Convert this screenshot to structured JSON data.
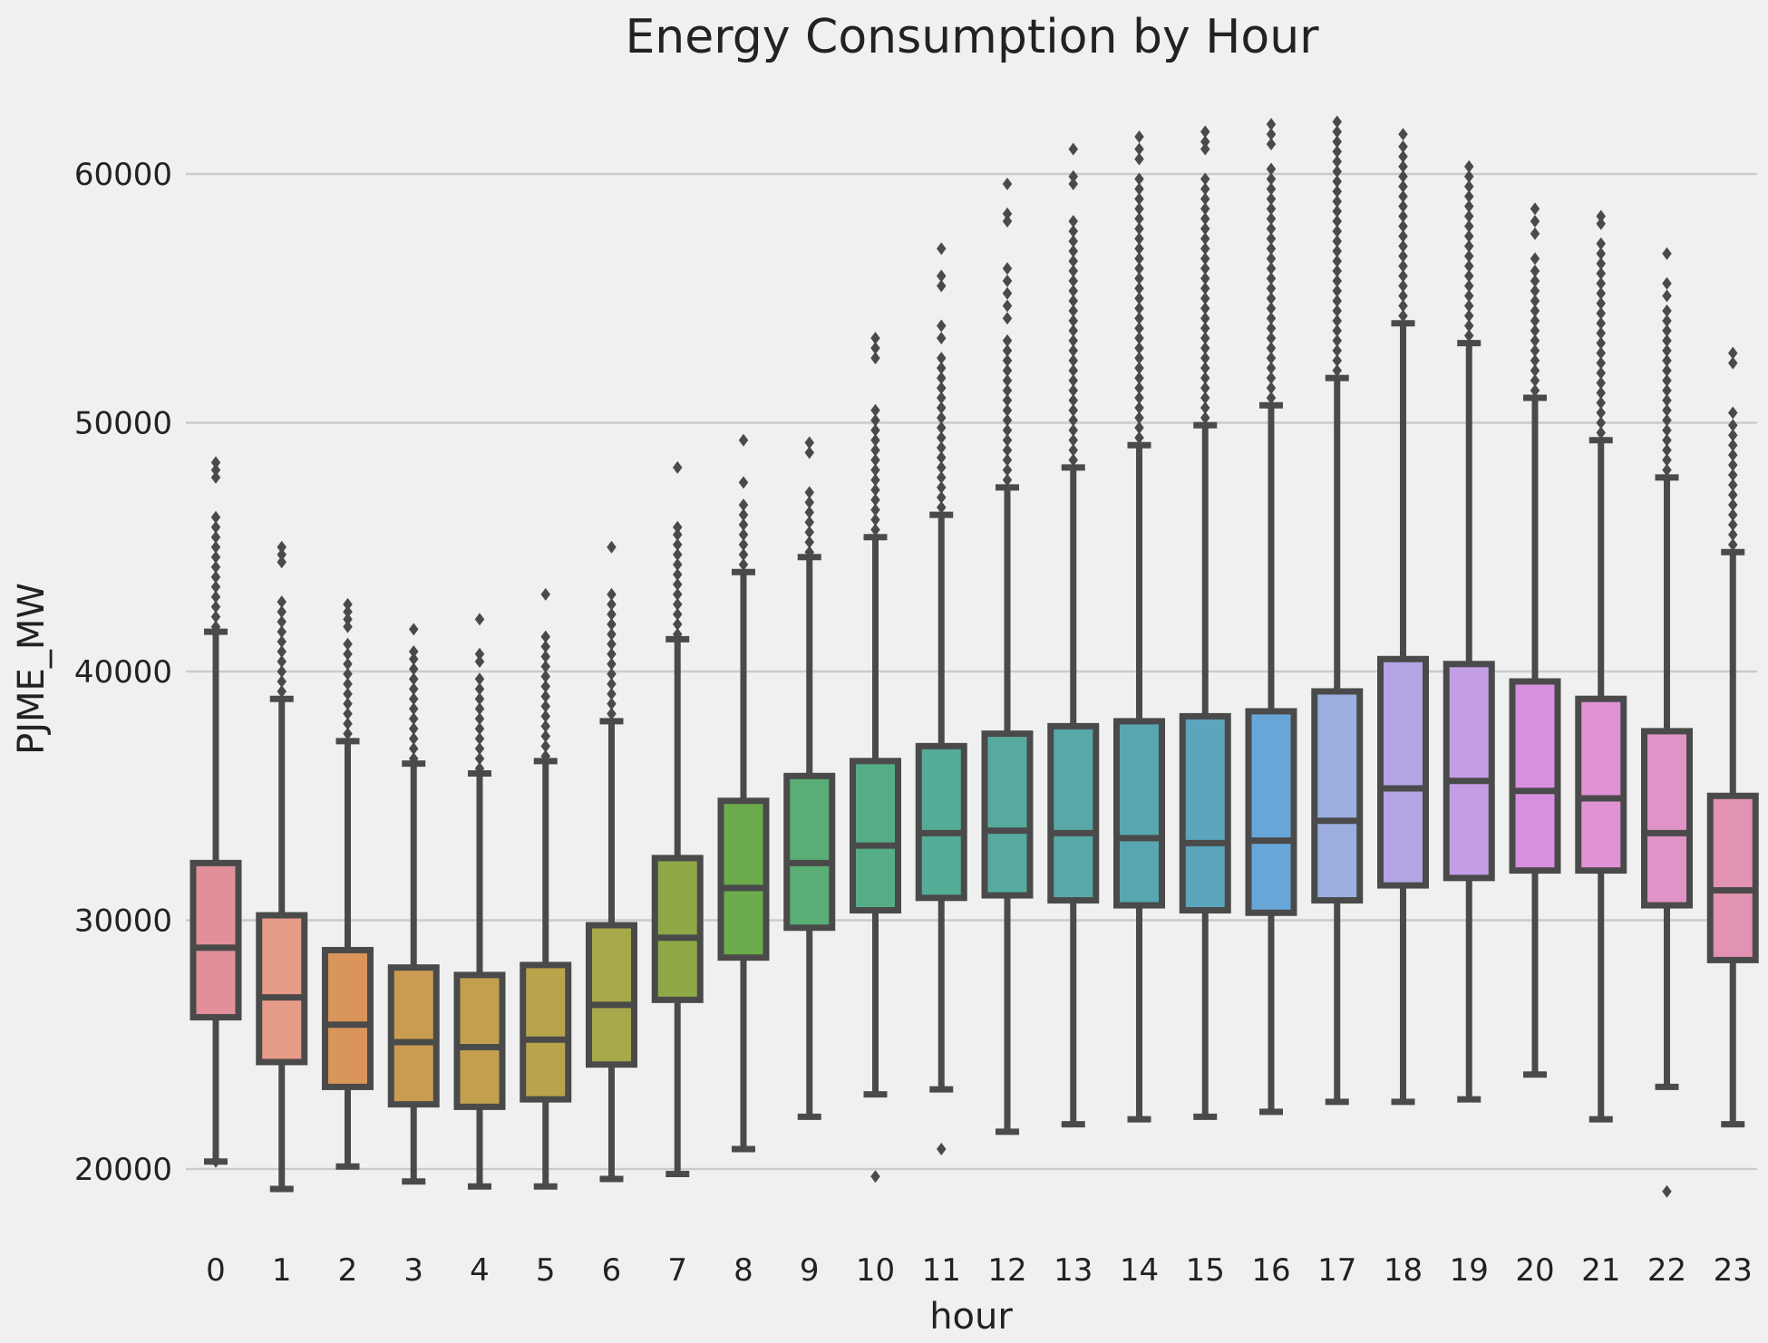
{
  "chart_data": {
    "type": "box",
    "title": "Energy Consumption by Hour",
    "xlabel": "hour",
    "ylabel": "PJME_MW",
    "categories": [
      "0",
      "1",
      "2",
      "3",
      "4",
      "5",
      "6",
      "7",
      "8",
      "9",
      "10",
      "11",
      "12",
      "13",
      "14",
      "15",
      "16",
      "17",
      "18",
      "19",
      "20",
      "21",
      "22",
      "23"
    ],
    "yticks": [
      20000,
      30000,
      40000,
      50000,
      60000
    ],
    "ytick_labels": [
      "20000",
      "30000",
      "40000",
      "50000",
      "60000"
    ],
    "ylim": [
      17000,
      63000
    ],
    "grid": "horizontal",
    "boxes": [
      {
        "hour": "0",
        "whislo": 20300,
        "q1": 26100,
        "med": 28900,
        "q3": 32300,
        "whishi": 41600,
        "color": "#e1909a",
        "fliers": [
          20300,
          41800,
          42200,
          42600,
          43000,
          43400,
          43800,
          44200,
          44600,
          45000,
          45400,
          45800,
          46200,
          47800,
          48100,
          48400
        ]
      },
      {
        "hour": "1",
        "whislo": 19200,
        "q1": 24300,
        "med": 26900,
        "q3": 30200,
        "whishi": 38900,
        "color": "#e69a88",
        "fliers": [
          39200,
          39600,
          40000,
          40400,
          40800,
          41200,
          41600,
          42000,
          42400,
          42800,
          44400,
          44700,
          45000
        ]
      },
      {
        "hour": "2",
        "whislo": 20100,
        "q1": 23300,
        "med": 25800,
        "q3": 28800,
        "whishi": 37200,
        "color": "#d9955a",
        "fliers": [
          37500,
          37900,
          38300,
          38700,
          39100,
          39500,
          39900,
          40300,
          40700,
          41100,
          41800,
          42100,
          42400,
          42700
        ]
      },
      {
        "hour": "3",
        "whislo": 19500,
        "q1": 22600,
        "med": 25100,
        "q3": 28100,
        "whishi": 36300,
        "color": "#c99c52",
        "fliers": [
          36500,
          36900,
          37300,
          37700,
          38100,
          38500,
          38900,
          39300,
          39700,
          40100,
          40500,
          40800,
          41700
        ]
      },
      {
        "hour": "4",
        "whislo": 19300,
        "q1": 22500,
        "med": 24900,
        "q3": 27800,
        "whishi": 35900,
        "color": "#c2a04e",
        "fliers": [
          36100,
          36500,
          36900,
          37300,
          37700,
          38100,
          38500,
          38900,
          39300,
          39700,
          40400,
          40700,
          42100
        ]
      },
      {
        "hour": "5",
        "whislo": 19300,
        "q1": 22800,
        "med": 25200,
        "q3": 28200,
        "whishi": 36400,
        "color": "#b9a44c",
        "fliers": [
          36600,
          37000,
          37400,
          37800,
          38200,
          38600,
          39000,
          39400,
          39800,
          40200,
          40600,
          41000,
          41400,
          43100
        ]
      },
      {
        "hour": "6",
        "whislo": 19600,
        "q1": 24200,
        "med": 26600,
        "q3": 29800,
        "whishi": 38000,
        "color": "#a7a84a",
        "fliers": [
          38300,
          38700,
          39100,
          39500,
          39900,
          40300,
          40700,
          41100,
          41500,
          41900,
          42300,
          42700,
          43100,
          45000
        ]
      },
      {
        "hour": "7",
        "whislo": 19800,
        "q1": 26800,
        "med": 29300,
        "q3": 32500,
        "whishi": 41300,
        "color": "#8fa848",
        "fliers": [
          41500,
          41900,
          42300,
          42700,
          43100,
          43500,
          43900,
          44300,
          44700,
          45100,
          45500,
          45800,
          48200
        ]
      },
      {
        "hour": "8",
        "whislo": 20800,
        "q1": 28500,
        "med": 31300,
        "q3": 34800,
        "whishi": 44000,
        "color": "#6cab4c",
        "fliers": [
          44300,
          44700,
          45100,
          45500,
          45900,
          46300,
          46700,
          47600,
          49300
        ]
      },
      {
        "hour": "9",
        "whislo": 22100,
        "q1": 29700,
        "med": 32300,
        "q3": 35800,
        "whishi": 44600,
        "color": "#58ae74",
        "fliers": [
          44800,
          45200,
          45600,
          46000,
          46400,
          46800,
          47200,
          48800,
          49200
        ]
      },
      {
        "hour": "10",
        "whislo": 23000,
        "q1": 30400,
        "med": 33000,
        "q3": 36400,
        "whishi": 45400,
        "color": "#55ad88",
        "fliers": [
          19700,
          45700,
          46100,
          46500,
          46900,
          47300,
          47700,
          48100,
          48500,
          48900,
          49300,
          49700,
          50100,
          50500,
          52600,
          53000,
          53400
        ]
      },
      {
        "hour": "11",
        "whislo": 23200,
        "q1": 30900,
        "med": 33500,
        "q3": 37000,
        "whishi": 46300,
        "color": "#55ac96",
        "fliers": [
          20800,
          46600,
          47000,
          47400,
          47800,
          48200,
          48600,
          49000,
          49400,
          49800,
          50200,
          50600,
          51000,
          51400,
          51800,
          52200,
          52600,
          53400,
          53900,
          55500,
          55900,
          57000
        ]
      },
      {
        "hour": "12",
        "whislo": 21500,
        "q1": 31000,
        "med": 33600,
        "q3": 37500,
        "whishi": 47400,
        "color": "#56aa9e",
        "fliers": [
          47700,
          48100,
          48500,
          48900,
          49300,
          49700,
          50100,
          50500,
          50900,
          51300,
          51700,
          52100,
          52500,
          52900,
          53300,
          54200,
          54700,
          55200,
          55700,
          56200,
          58100,
          58400,
          59600
        ]
      },
      {
        "hour": "13",
        "whislo": 21800,
        "q1": 30800,
        "med": 33500,
        "q3": 37800,
        "whishi": 48200,
        "color": "#57a8a6",
        "fliers": [
          48500,
          48900,
          49300,
          49700,
          50100,
          50500,
          50900,
          51300,
          51700,
          52100,
          52500,
          52900,
          53300,
          53700,
          54100,
          54500,
          54900,
          55300,
          55700,
          56100,
          56500,
          56900,
          57300,
          57700,
          58100,
          59600,
          59900,
          61000
        ]
      },
      {
        "hour": "14",
        "whislo": 22000,
        "q1": 30600,
        "med": 33300,
        "q3": 38000,
        "whishi": 49100,
        "color": "#58a6b0",
        "fliers": [
          49400,
          49800,
          50200,
          50600,
          51000,
          51400,
          51800,
          52200,
          52600,
          53000,
          53400,
          53800,
          54200,
          54600,
          55000,
          55400,
          55800,
          56200,
          56600,
          57000,
          57400,
          57800,
          58200,
          58600,
          59000,
          59400,
          59800,
          60600,
          61000,
          61500
        ]
      },
      {
        "hour": "15",
        "whislo": 22100,
        "q1": 30400,
        "med": 33100,
        "q3": 38200,
        "whishi": 49900,
        "color": "#5ba5bd",
        "fliers": [
          50200,
          50600,
          51000,
          51400,
          51800,
          52200,
          52600,
          53000,
          53400,
          53800,
          54200,
          54600,
          55000,
          55400,
          55800,
          56200,
          56600,
          57000,
          57400,
          57800,
          58200,
          58600,
          59000,
          59400,
          59800,
          61000,
          61300,
          61700
        ]
      },
      {
        "hour": "16",
        "whislo": 22300,
        "q1": 30300,
        "med": 33200,
        "q3": 38400,
        "whishi": 50700,
        "color": "#69a6d8",
        "fliers": [
          51000,
          51400,
          51800,
          52200,
          52600,
          53000,
          53400,
          53800,
          54200,
          54600,
          55000,
          55400,
          55800,
          56200,
          56600,
          57000,
          57400,
          57800,
          58200,
          58600,
          59000,
          59400,
          59800,
          60200,
          61200,
          61600,
          62000
        ]
      },
      {
        "hour": "17",
        "whislo": 22700,
        "q1": 30800,
        "med": 34000,
        "q3": 39200,
        "whishi": 51800,
        "color": "#9caee0",
        "fliers": [
          52100,
          52500,
          52900,
          53300,
          53700,
          54100,
          54500,
          54900,
          55300,
          55700,
          56100,
          56500,
          56900,
          57300,
          57700,
          58100,
          58500,
          58900,
          59300,
          59700,
          60100,
          60500,
          60900,
          61300,
          61700,
          62100
        ]
      },
      {
        "hour": "18",
        "whislo": 22700,
        "q1": 31400,
        "med": 35300,
        "q3": 40500,
        "whishi": 54000,
        "color": "#b5a4e4",
        "fliers": [
          54300,
          54700,
          55100,
          55500,
          55900,
          56300,
          56700,
          57100,
          57500,
          57900,
          58300,
          58700,
          59100,
          59500,
          59900,
          60300,
          60700,
          61100,
          61600
        ]
      },
      {
        "hour": "19",
        "whislo": 22800,
        "q1": 31700,
        "med": 35600,
        "q3": 40300,
        "whishi": 53200,
        "color": "#c39ee6",
        "fliers": [
          53500,
          53900,
          54300,
          54700,
          55100,
          55500,
          55900,
          56300,
          56700,
          57100,
          57500,
          57900,
          58300,
          58700,
          59100,
          59500,
          59900,
          60300
        ]
      },
      {
        "hour": "20",
        "whislo": 23800,
        "q1": 32000,
        "med": 35200,
        "q3": 39600,
        "whishi": 51000,
        "color": "#d88fe0",
        "fliers": [
          51300,
          51700,
          52100,
          52500,
          52900,
          53300,
          53700,
          54100,
          54500,
          54900,
          55300,
          55700,
          56100,
          56600,
          57600,
          58100,
          58600
        ]
      },
      {
        "hour": "21",
        "whislo": 22000,
        "q1": 32000,
        "med": 34900,
        "q3": 38900,
        "whishi": 49300,
        "color": "#df93d4",
        "fliers": [
          49600,
          50000,
          50400,
          50800,
          51200,
          51600,
          52000,
          52400,
          52800,
          53200,
          53600,
          54000,
          54400,
          54800,
          55200,
          55600,
          56000,
          56400,
          56800,
          57200,
          58000,
          58300
        ]
      },
      {
        "hour": "22",
        "whislo": 23300,
        "q1": 30600,
        "med": 33500,
        "q3": 37600,
        "whishi": 47800,
        "color": "#e093c6",
        "fliers": [
          19100,
          48100,
          48500,
          48900,
          49300,
          49700,
          50100,
          50500,
          50900,
          51300,
          51700,
          52100,
          52500,
          52900,
          53300,
          53700,
          54100,
          54500,
          55100,
          55600,
          56800
        ]
      },
      {
        "hour": "23",
        "whislo": 21800,
        "q1": 28400,
        "med": 31200,
        "q3": 35000,
        "whishi": 44800,
        "color": "#e292b2",
        "fliers": [
          45100,
          45500,
          45900,
          46300,
          46700,
          47100,
          47500,
          47900,
          48300,
          48700,
          49100,
          49500,
          49900,
          50400,
          52400,
          52800
        ]
      }
    ]
  }
}
